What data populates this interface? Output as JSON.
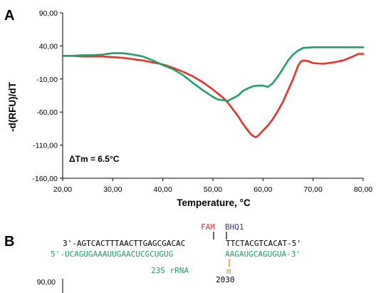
{
  "figure": {
    "panel_a_label": "A",
    "panel_b_label": "B"
  },
  "chart_data": {
    "type": "line",
    "title": "",
    "xlabel": "Temperature, °C",
    "ylabel": "-d(RFU)/dT",
    "xlim": [
      20,
      80
    ],
    "ylim": [
      -160,
      90
    ],
    "x_ticks": [
      "20,00",
      "30,00",
      "40,00",
      "50,00",
      "60,00",
      "70,00",
      "80,00"
    ],
    "y_ticks": [
      "90,00",
      "40,00",
      "-10,00",
      "-60,00",
      "-110,00",
      "-160,00"
    ],
    "annotation": "ΔTm = 6.5°C",
    "grid": false,
    "legend": "none",
    "series": [
      {
        "color": "#e8322b",
        "x": [
          20,
          22,
          24,
          26,
          28,
          30,
          32,
          34,
          36,
          38,
          40,
          42,
          44,
          46,
          48,
          50,
          52,
          53,
          54,
          55,
          56,
          57,
          57.5,
          58,
          58.5,
          59,
          59.5,
          60,
          61,
          62,
          63,
          64,
          65,
          66,
          66.5,
          67,
          67.5,
          68,
          69,
          70,
          72,
          74,
          76,
          78,
          79,
          80
        ],
        "y": [
          25,
          25,
          24,
          24,
          24,
          23,
          22,
          20,
          18,
          15,
          12,
          7,
          1,
          -6,
          -15,
          -26,
          -38,
          -46,
          -56,
          -66,
          -78,
          -88,
          -93,
          -96,
          -98,
          -96,
          -92,
          -88,
          -80,
          -70,
          -58,
          -44,
          -27,
          -10,
          0,
          10,
          16,
          18,
          17,
          14,
          13,
          15,
          18,
          24,
          28,
          28
        ]
      },
      {
        "color": "#22a06b",
        "x": [
          20,
          22,
          24,
          26,
          28,
          30,
          32,
          34,
          36,
          38,
          40,
          42,
          44,
          46,
          48,
          50,
          51,
          52,
          53,
          54,
          55,
          56,
          57,
          58,
          59,
          60,
          61,
          62,
          63,
          64,
          65,
          66,
          67,
          68,
          70,
          72,
          74,
          76,
          78,
          79,
          80
        ],
        "y": [
          25,
          25,
          26,
          26,
          27,
          29,
          29,
          27,
          24,
          18,
          11,
          5,
          -4,
          -16,
          -27,
          -37,
          -41,
          -42,
          -43,
          -39,
          -35,
          -28,
          -24,
          -21,
          -20,
          -20,
          -22,
          -16,
          -6,
          6,
          18,
          27,
          33,
          37,
          38,
          38,
          38,
          38,
          38,
          38,
          38
        ]
      }
    ]
  },
  "sequence": {
    "fam_label": "FAM",
    "bhq1_label": "BHQ1",
    "probe_part1": "3'-AGTCACTTTAACTTGAGCGACAC",
    "probe_part2": "TTCTACGTCACAT-5'",
    "rrna_part1": "5'-UCAGUGAAAUUGAACUCGCUGUG",
    "rrna_part2": "AAGAUGCAGUGUA-3'",
    "rrna_label": "23S rRNA",
    "mod_label": "m",
    "position": "2030",
    "colors": {
      "probe": "#000000",
      "rrna": "#22a06b",
      "fam": "#e8322b",
      "bhq1": "#3a3a8c",
      "mod": "#f08a2a"
    }
  },
  "partial_tick": "90,00"
}
